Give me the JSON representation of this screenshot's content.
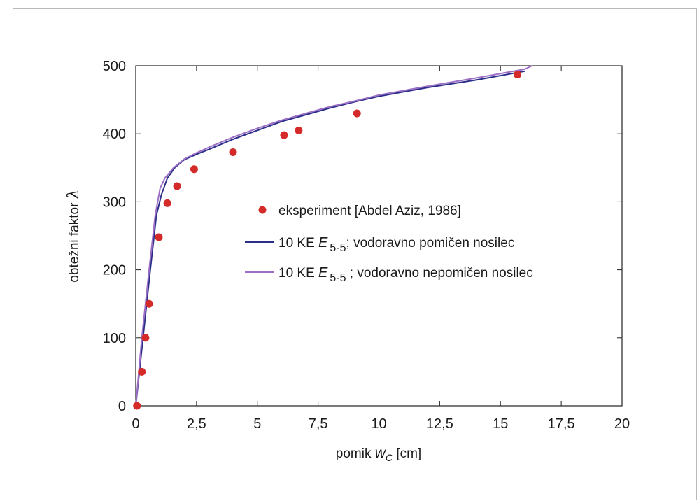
{
  "chart_data": {
    "type": "line",
    "xlabel": "pomik wC [cm]",
    "xlabel_parts": {
      "pre": "pomik ",
      "var": "w",
      "sub": "C",
      "post": " [cm]"
    },
    "ylabel": "obtežni faktor λ",
    "ylabel_parts": {
      "text": "obtežni faktor",
      "sym": "λ"
    },
    "xlim": [
      0,
      20
    ],
    "ylim": [
      0,
      500
    ],
    "xticks": [
      0,
      2.5,
      5,
      7.5,
      10,
      12.5,
      15,
      17.5,
      20
    ],
    "xtick_labels": [
      "0",
      "2,5",
      "5",
      "7,5",
      "10",
      "12,5",
      "15",
      "17,5",
      "20"
    ],
    "yticks": [
      0,
      100,
      200,
      300,
      400,
      500
    ],
    "ytick_labels": [
      "0",
      "100",
      "200",
      "300",
      "400",
      "500"
    ],
    "grid": false,
    "legend_position": "center-right",
    "series": [
      {
        "name": "eksperiment [Abdel Aziz, 1986]",
        "kind": "scatter",
        "color": "#d42a2a",
        "x": [
          0.05,
          0.25,
          0.4,
          0.55,
          0.95,
          1.3,
          1.7,
          2.4,
          4.0,
          6.1,
          6.7,
          9.1,
          15.7
        ],
        "y": [
          0,
          50,
          100,
          150,
          248,
          298,
          323,
          348,
          373,
          398,
          405,
          430,
          487
        ]
      },
      {
        "name": "10 KE E5-5; vodoravno pomičen nosilec",
        "legend_parts": {
          "pre": "10 KE ",
          "var": "E",
          "sub": "5-5",
          "post": "; vodoravno pomičen nosilec"
        },
        "kind": "line",
        "color": "#2b2f8a",
        "x": [
          0,
          0.3,
          0.6,
          0.85,
          1.05,
          1.3,
          1.6,
          2.0,
          2.5,
          3.0,
          4.0,
          5.0,
          6.0,
          7.0,
          8.0,
          9.0,
          10.0,
          12.0,
          14.0,
          16.0
        ],
        "y": [
          0,
          100,
          200,
          280,
          310,
          335,
          350,
          362,
          370,
          377,
          392,
          405,
          418,
          428,
          438,
          447,
          455,
          468,
          479,
          492
        ]
      },
      {
        "name": "10 KE E5-5 ; vodoravno nepomičen nosilec",
        "legend_parts": {
          "pre": "10 KE ",
          "var": "E",
          "sub": "5-5",
          "post": " ; vodoravno nepomičen nosilec"
        },
        "kind": "line",
        "color": "#9c6fc4",
        "x": [
          0,
          0.25,
          0.55,
          0.8,
          1.0,
          1.2,
          1.55,
          2.0,
          2.5,
          3.0,
          4.0,
          5.0,
          6.0,
          7.0,
          8.0,
          9.0,
          10.0,
          12.0,
          14.0,
          16.0,
          16.3
        ],
        "y": [
          0,
          100,
          200,
          280,
          320,
          335,
          350,
          363,
          372,
          380,
          395,
          408,
          420,
          430,
          440,
          448,
          457,
          470,
          482,
          495,
          500
        ]
      }
    ]
  }
}
